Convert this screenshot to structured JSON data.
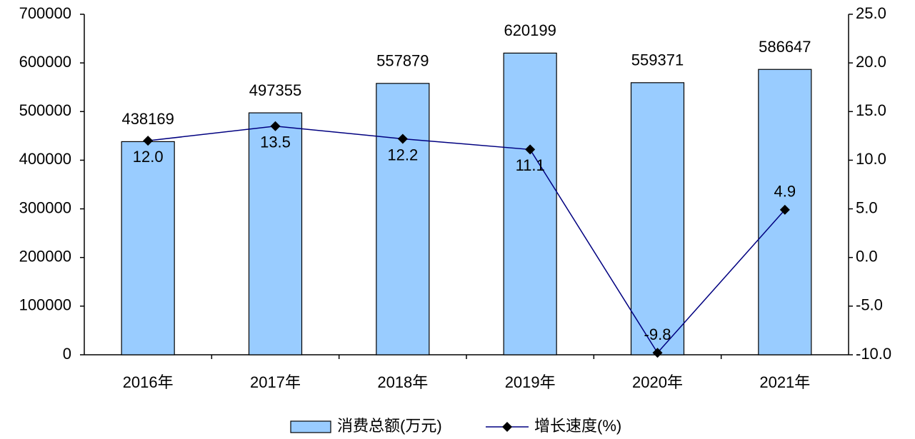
{
  "chart_data": {
    "type": "bar",
    "categories": [
      "2016年",
      "2017年",
      "2018年",
      "2019年",
      "2020年",
      "2021年"
    ],
    "series": [
      {
        "name": "消费总额(万元)",
        "type": "bar",
        "color": "#99ccff",
        "values": [
          438169,
          497355,
          557879,
          620199,
          559371,
          586647
        ]
      },
      {
        "name": "增长速度(%)",
        "type": "line",
        "axis": "y2",
        "color": "#000080",
        "marker_color": "#000000",
        "values": [
          12.0,
          13.5,
          12.2,
          11.1,
          -9.8,
          4.9
        ],
        "value_labels": [
          "12.0",
          "13.5",
          "12.2",
          "11.1",
          "-9.8",
          "4.9"
        ]
      }
    ],
    "ylim": [
      0,
      700000
    ],
    "yticks": [
      0,
      100000,
      200000,
      300000,
      400000,
      500000,
      600000,
      700000
    ],
    "y2lim": [
      -10,
      25
    ],
    "y2ticks": [
      {
        "value": -10,
        "label": "-10.0"
      },
      {
        "value": -5,
        "label": "-5.0"
      },
      {
        "value": 0,
        "label": "0.0"
      },
      {
        "value": 5,
        "label": "5.0"
      },
      {
        "value": 10,
        "label": "10.0"
      },
      {
        "value": 15,
        "label": "15.0"
      },
      {
        "value": 20,
        "label": "20.0"
      },
      {
        "value": 25,
        "label": "25.0"
      }
    ],
    "grid": false,
    "legend": "bottom"
  }
}
